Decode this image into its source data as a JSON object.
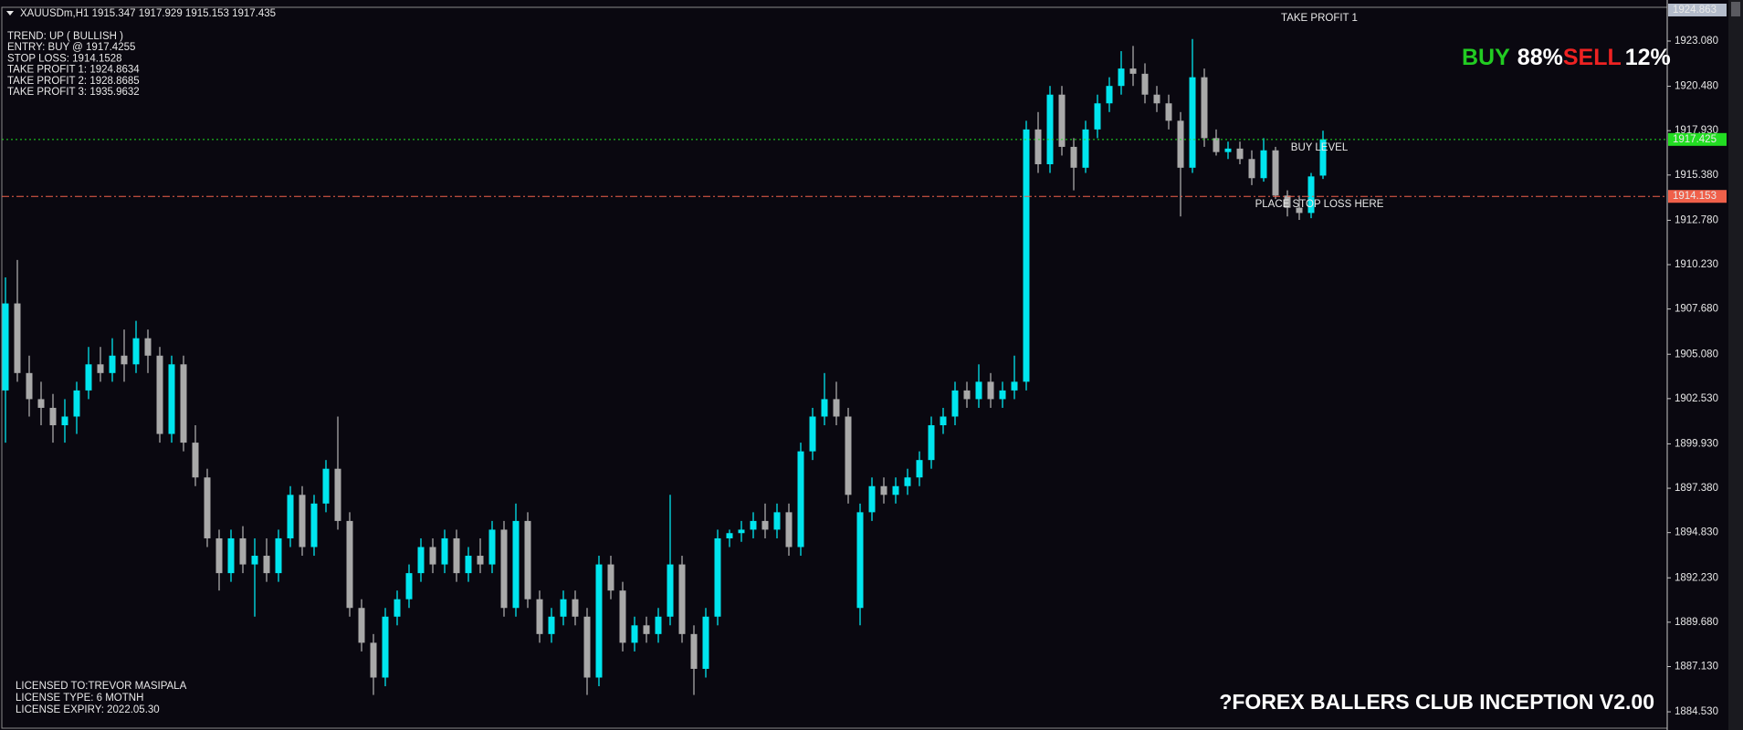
{
  "header": "XAUUSDm,H1  1915.347 1917.929 1915.153 1917.435",
  "info": [
    "TREND: UP ( BULLISH )",
    "ENTRY: BUY @ 1917.4255",
    "STOP LOSS: 1914.1528",
    "TAKE PROFIT 1: 1924.8634",
    "TAKE PROFIT 2: 1928.8685",
    "TAKE PROFIT 3: 1935.9632"
  ],
  "signal": {
    "buy_label": "BUY",
    "buy_pct": "88%",
    "sell_label": "SELL",
    "sell_pct": "12%"
  },
  "license": [
    "LICENSED TO:TREVOR MASIPALA",
    "LICENSE TYPE: 6 MOTNH",
    "LICENSE EXPIRY: 2022.05.30"
  ],
  "brand": "?FOREX BALLERS CLUB INCEPTION V2.00",
  "chart_data": {
    "type": "candlestick",
    "up_color": "#00e5ee",
    "down_color": "#a9a9a9",
    "ylim": [
      1883.59,
      1925.02
    ],
    "yticks": [
      {
        "value": 1923.08,
        "label": "1923.080"
      },
      {
        "value": 1920.48,
        "label": "1920.480"
      },
      {
        "value": 1917.93,
        "label": "1917.930"
      },
      {
        "value": 1915.38,
        "label": "1915.380"
      },
      {
        "value": 1912.78,
        "label": "1912.780"
      },
      {
        "value": 1910.23,
        "label": "1910.230"
      },
      {
        "value": 1907.68,
        "label": "1907.680"
      },
      {
        "value": 1905.08,
        "label": "1905.080"
      },
      {
        "value": 1902.53,
        "label": "1902.530"
      },
      {
        "value": 1899.93,
        "label": "1899.930"
      },
      {
        "value": 1897.38,
        "label": "1897.380"
      },
      {
        "value": 1894.83,
        "label": "1894.830"
      },
      {
        "value": 1892.23,
        "label": "1892.230"
      },
      {
        "value": 1889.68,
        "label": "1889.680"
      },
      {
        "value": 1887.13,
        "label": "1887.130"
      },
      {
        "value": 1884.53,
        "label": "1884.530"
      }
    ],
    "levels": [
      {
        "label": "TAKE PROFIT 1",
        "value": 1924.863,
        "color": "#b4bccb",
        "text_color": "#0a0810",
        "style": "none"
      },
      {
        "label": "BUY LEVEL",
        "value": 1917.425,
        "color": "#22dd22",
        "text_color": "#0a0810",
        "style": "dotted"
      },
      {
        "label": "PLACE STOP LOSS HERE",
        "value": 1914.153,
        "color": "#f0604a",
        "text_color": "#ffffff",
        "style": "dashdot"
      }
    ],
    "candles": [
      [
        1903,
        1909.5,
        1900,
        1908
      ],
      [
        1908,
        1910.5,
        1903.5,
        1904
      ],
      [
        1904,
        1905,
        1901.5,
        1902.5
      ],
      [
        1902.5,
        1903.5,
        1901,
        1902
      ],
      [
        1902,
        1902.8,
        1900,
        1901
      ],
      [
        1901,
        1902.5,
        1900,
        1901.5
      ],
      [
        1901.5,
        1903.5,
        1900.5,
        1903
      ],
      [
        1903,
        1905.5,
        1902.5,
        1904.5
      ],
      [
        1904.5,
        1905.5,
        1903.5,
        1904
      ],
      [
        1904,
        1906,
        1903.5,
        1905
      ],
      [
        1905,
        1906.5,
        1903.5,
        1904.5
      ],
      [
        1904.5,
        1907,
        1904,
        1906
      ],
      [
        1906,
        1906.5,
        1904,
        1905
      ],
      [
        1905,
        1905.5,
        1900,
        1900.5
      ],
      [
        1900.5,
        1905,
        1900,
        1904.5
      ],
      [
        1904.5,
        1905,
        1899.5,
        1900
      ],
      [
        1900,
        1901,
        1897.5,
        1898
      ],
      [
        1898,
        1898.5,
        1894,
        1894.5
      ],
      [
        1894.5,
        1895,
        1891.5,
        1892.5
      ],
      [
        1892.5,
        1895,
        1892,
        1894.5
      ],
      [
        1894.5,
        1895.2,
        1892.5,
        1893
      ],
      [
        1893,
        1894.5,
        1890,
        1893.5
      ],
      [
        1893.5,
        1894.5,
        1892,
        1892.5
      ],
      [
        1892.5,
        1895,
        1892,
        1894.5
      ],
      [
        1894.5,
        1897.5,
        1894,
        1897
      ],
      [
        1897,
        1897.5,
        1893.5,
        1894
      ],
      [
        1894,
        1897,
        1893.5,
        1896.5
      ],
      [
        1896.5,
        1899,
        1896,
        1898.5
      ],
      [
        1898.5,
        1901.5,
        1895,
        1895.5
      ],
      [
        1895.5,
        1896,
        1890,
        1890.5
      ],
      [
        1890.5,
        1891,
        1888,
        1888.5
      ],
      [
        1888.5,
        1889,
        1885.5,
        1886.5
      ],
      [
        1886.5,
        1890.5,
        1886,
        1890
      ],
      [
        1890,
        1891.5,
        1889.5,
        1891
      ],
      [
        1891,
        1893,
        1890.5,
        1892.5
      ],
      [
        1892.5,
        1894.5,
        1892,
        1894
      ],
      [
        1894,
        1894.5,
        1892.5,
        1893
      ],
      [
        1893,
        1895,
        1892.5,
        1894.5
      ],
      [
        1894.5,
        1895,
        1892,
        1892.5
      ],
      [
        1892.5,
        1894,
        1892,
        1893.5
      ],
      [
        1893.5,
        1894.5,
        1892.5,
        1893
      ],
      [
        1893,
        1895.5,
        1892.5,
        1895
      ],
      [
        1895,
        1895.5,
        1890,
        1890.5
      ],
      [
        1890.5,
        1896.5,
        1890,
        1895.5
      ],
      [
        1895.5,
        1896,
        1890.5,
        1891
      ],
      [
        1891,
        1891.5,
        1888.5,
        1889
      ],
      [
        1889,
        1890.5,
        1888.5,
        1890
      ],
      [
        1890,
        1891.5,
        1889.5,
        1891
      ],
      [
        1891,
        1891.5,
        1889.5,
        1890
      ],
      [
        1890,
        1890.5,
        1885.5,
        1886.5
      ],
      [
        1886.5,
        1893.5,
        1886,
        1893
      ],
      [
        1893,
        1893.5,
        1891,
        1891.5
      ],
      [
        1891.5,
        1892,
        1888,
        1888.5
      ],
      [
        1888.5,
        1890,
        1888,
        1889.5
      ],
      [
        1889.5,
        1890,
        1888.5,
        1889
      ],
      [
        1889,
        1890.5,
        1888.5,
        1890
      ],
      [
        1890,
        1897,
        1889.5,
        1893
      ],
      [
        1893,
        1893.5,
        1888.5,
        1889
      ],
      [
        1889,
        1889.5,
        1885.5,
        1887
      ],
      [
        1887,
        1890.5,
        1886.5,
        1890
      ],
      [
        1890,
        1895,
        1889.5,
        1894.5
      ],
      [
        1894.5,
        1895,
        1894,
        1894.8
      ],
      [
        1894.8,
        1895.5,
        1894.3,
        1895
      ],
      [
        1895,
        1896,
        1894.5,
        1895.5
      ],
      [
        1895.5,
        1896.5,
        1894.5,
        1895
      ],
      [
        1895,
        1896.5,
        1894.5,
        1896
      ],
      [
        1896,
        1896.5,
        1893.5,
        1894
      ],
      [
        1894,
        1900,
        1893.5,
        1899.5
      ],
      [
        1899.5,
        1902,
        1899,
        1901.5
      ],
      [
        1901.5,
        1904,
        1901,
        1902.5
      ],
      [
        1902.5,
        1903.5,
        1901,
        1901.5
      ],
      [
        1901.5,
        1902,
        1896.5,
        1897
      ],
      [
        1890.5,
        1896.5,
        1889.5,
        1896
      ],
      [
        1896,
        1898,
        1895.5,
        1897.5
      ],
      [
        1897.5,
        1898,
        1896.5,
        1897
      ],
      [
        1897,
        1898,
        1896.5,
        1897.5
      ],
      [
        1897.5,
        1898.5,
        1897,
        1898
      ],
      [
        1898,
        1899.5,
        1897.5,
        1899
      ],
      [
        1899,
        1901.5,
        1898.5,
        1901
      ],
      [
        1901,
        1902,
        1900.5,
        1901.5
      ],
      [
        1901.5,
        1903.5,
        1901,
        1903
      ],
      [
        1903,
        1903.5,
        1902,
        1902.5
      ],
      [
        1902.5,
        1904.5,
        1902,
        1903.5
      ],
      [
        1903.5,
        1904,
        1902,
        1902.5
      ],
      [
        1902.5,
        1903.5,
        1902,
        1903
      ],
      [
        1903,
        1905,
        1902.5,
        1903.5
      ],
      [
        1903.5,
        1918.5,
        1903,
        1918
      ],
      [
        1918,
        1919,
        1915.5,
        1916
      ],
      [
        1916,
        1920.5,
        1915.5,
        1920
      ],
      [
        1920,
        1920.5,
        1916.5,
        1917
      ],
      [
        1917,
        1917.5,
        1914.5,
        1915.8
      ],
      [
        1915.8,
        1918.5,
        1915.5,
        1918
      ],
      [
        1918,
        1920,
        1917.5,
        1919.5
      ],
      [
        1919.5,
        1921,
        1919,
        1920.5
      ],
      [
        1920.5,
        1922.5,
        1920,
        1921.5
      ],
      [
        1921.5,
        1922.8,
        1920.5,
        1921.2
      ],
      [
        1921.2,
        1921.8,
        1919.5,
        1920
      ],
      [
        1920,
        1920.5,
        1919,
        1919.5
      ],
      [
        1919.5,
        1920,
        1918,
        1918.5
      ],
      [
        1918.5,
        1919,
        1913,
        1915.8
      ],
      [
        1915.8,
        1923.2,
        1915.5,
        1921
      ],
      [
        1921,
        1921.5,
        1917,
        1917.5
      ],
      [
        1917.5,
        1918,
        1916.5,
        1916.7
      ],
      [
        1916.7,
        1917.3,
        1916.3,
        1916.9
      ],
      [
        1916.9,
        1917.3,
        1916,
        1916.3
      ],
      [
        1916.3,
        1916.8,
        1914.8,
        1915.2
      ],
      [
        1915.2,
        1917.5,
        1915,
        1916.8
      ],
      [
        1916.8,
        1917,
        1914,
        1914.2
      ],
      [
        1914.2,
        1914.5,
        1913,
        1913.5
      ],
      [
        1913.5,
        1914.2,
        1912.8,
        1913.2
      ],
      [
        1913.2,
        1915.5,
        1912.9,
        1915.3
      ],
      [
        1915.347,
        1917.929,
        1915.153,
        1917.435
      ]
    ]
  }
}
